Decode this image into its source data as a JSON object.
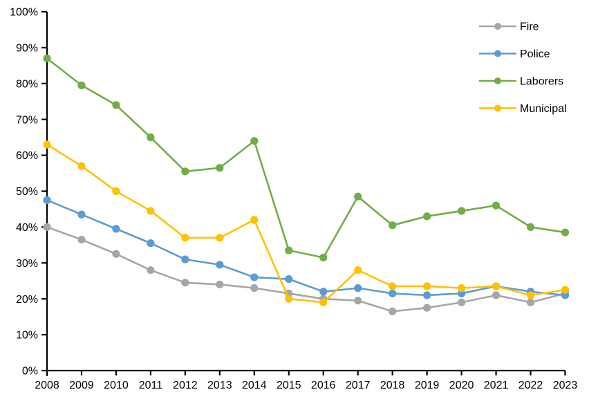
{
  "chart_data": {
    "type": "line",
    "title": "",
    "xlabel": "",
    "ylabel": "",
    "x": [
      2008,
      2009,
      2010,
      2011,
      2012,
      2013,
      2014,
      2015,
      2016,
      2017,
      2018,
      2019,
      2020,
      2021,
      2022,
      2023
    ],
    "x_tick_labels": [
      "2008",
      "2009",
      "2010",
      "2011",
      "2012",
      "2013",
      "2014",
      "2015",
      "2016",
      "2017",
      "2018",
      "2019",
      "2020",
      "2021",
      "2022",
      "2023"
    ],
    "y_tick_labels": [
      "0%",
      "10%",
      "20%",
      "30%",
      "40%",
      "50%",
      "60%",
      "70%",
      "80%",
      "90%",
      "100%"
    ],
    "ylim": [
      0,
      100
    ],
    "y_tick_step": 10,
    "grid": false,
    "legend_position": "top-right",
    "axis_color": "#000000",
    "background_color": "#ffffff",
    "marker": "circle",
    "series": [
      {
        "name": "Fire",
        "color": "#a6a6a6",
        "values": [
          40,
          36.5,
          32.5,
          28,
          24.5,
          24,
          23,
          21.5,
          20,
          19.5,
          16.5,
          17.5,
          19,
          21,
          19,
          21.5
        ]
      },
      {
        "name": "Police",
        "color": "#5b9bd5",
        "values": [
          47.5,
          43.5,
          39.5,
          35.5,
          31,
          29.5,
          26,
          25.5,
          22,
          23,
          21.5,
          21,
          21.5,
          23.5,
          22,
          21
        ]
      },
      {
        "name": "Laborers",
        "color": "#70ad47",
        "values": [
          87,
          79.5,
          74,
          65,
          55.5,
          56.5,
          64,
          33.5,
          31.5,
          48.5,
          40.5,
          43,
          44.5,
          46,
          40,
          38.5
        ]
      },
      {
        "name": "Municipal",
        "color": "#ffc000",
        "values": [
          63,
          57,
          50,
          44.5,
          37,
          37,
          42,
          20,
          19,
          28,
          23.5,
          23.5,
          23,
          23.5,
          21,
          22.5
        ]
      }
    ]
  }
}
